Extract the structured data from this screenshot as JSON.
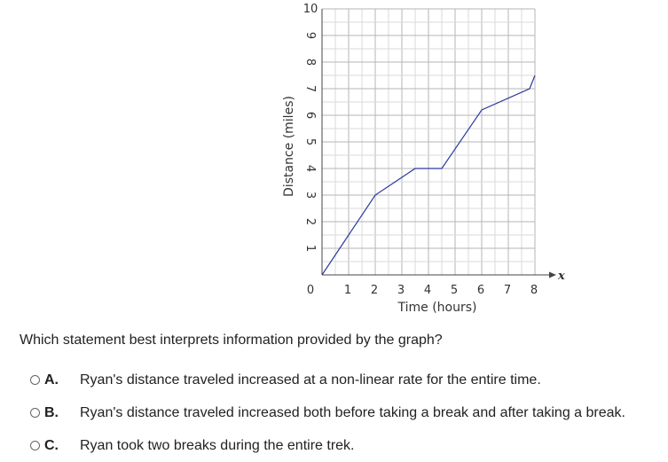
{
  "chart_data": {
    "type": "line",
    "title": "",
    "xlabel": "Time (hours)",
    "ylabel": "Distance (miles)",
    "x_axis_symbol": "x",
    "xlim": [
      0,
      8
    ],
    "ylim": [
      0,
      10
    ],
    "grid": true,
    "x_ticks": [
      "1",
      "2",
      "3",
      "4",
      "5",
      "6",
      "7",
      "8"
    ],
    "y_ticks": [
      "1",
      "2",
      "3",
      "4",
      "5",
      "6",
      "7",
      "8",
      "9",
      "10"
    ],
    "origin_label": "0",
    "line_color": "#2b3a9e",
    "series": [
      {
        "x": [
          0,
          2,
          3.5,
          4.5,
          6,
          7.8,
          8
        ],
        "y": [
          0,
          3,
          4,
          4,
          6.2,
          7,
          7.5
        ]
      }
    ]
  },
  "question": {
    "prompt": "Which statement best interprets information provided by the graph?",
    "options": [
      {
        "letter": "A.",
        "text": "Ryan's distance traveled increased at a non-linear rate for the entire time."
      },
      {
        "letter": "B.",
        "text": "Ryan's distance traveled increased both before taking a break and after taking a break."
      },
      {
        "letter": "C.",
        "text": "Ryan took two breaks during the entire trek."
      }
    ]
  }
}
